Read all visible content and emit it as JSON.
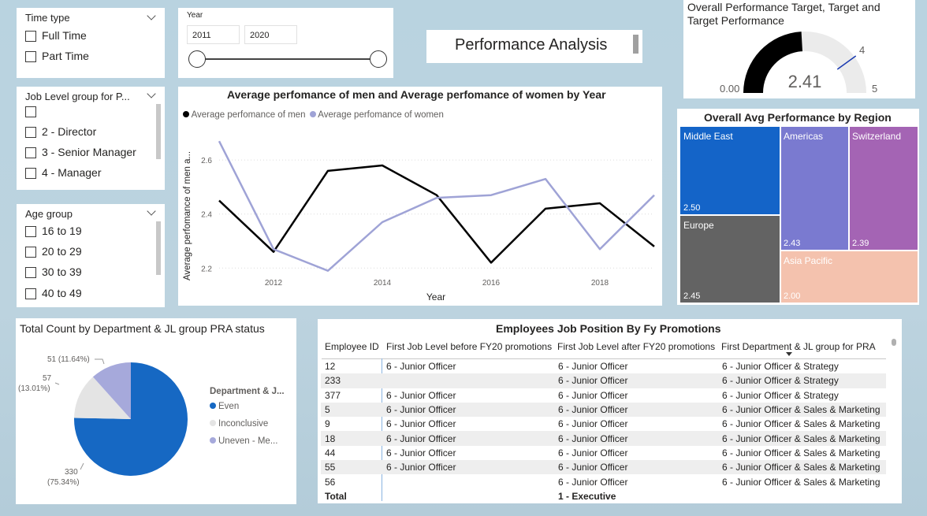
{
  "colors": {
    "men_line": "#000000",
    "women_line": "#9fa3d6",
    "middle_east": "#1464c8",
    "americas": "#7a7ad0",
    "switzerland": "#a464b4",
    "europe": "#636363",
    "asia_pacific": "#f4c2ae",
    "pie_even": "#1668c3",
    "pie_inconclusive": "#e4e4e4",
    "pie_uneven": "#a6a9db"
  },
  "time_type": {
    "title": "Time type",
    "items": [
      "Full Time",
      "Part Time"
    ]
  },
  "year_slicer": {
    "title": "Year",
    "start": "2011",
    "end": "2020",
    "range": [
      2011,
      2020
    ]
  },
  "page_title": "Performance Analysis",
  "job_level": {
    "title": "Job Level group for P...",
    "items": [
      "",
      "2 - Director",
      "3 - Senior Manager",
      "4 - Manager"
    ]
  },
  "age_group": {
    "title": "Age group",
    "items": [
      "16 to 19",
      "20 to 29",
      "30 to 39",
      "40 to 49"
    ]
  },
  "gauge": {
    "title_line1": "Overall Performance Target, Target and",
    "title_line2": "Target Performance",
    "value": 2.41,
    "value_label": "2.41",
    "min_label": "0.00",
    "max_label": "5",
    "target_label": "4",
    "min": 0,
    "max": 5,
    "target": 4
  },
  "line_chart": {
    "title": "Average perfomance of men and Average perfomance of women by Year",
    "legend_men": "Average perfomance of men",
    "legend_women": "Average perfomance of women",
    "xlabel": "Year",
    "ylabel": "Average perfomance of men a..."
  },
  "treemap": {
    "title": "Overall Avg Performance by Region",
    "tiles": [
      {
        "name": "Middle East",
        "value": "2.50"
      },
      {
        "name": "Europe",
        "value": "2.45"
      },
      {
        "name": "Americas",
        "value": "2.43"
      },
      {
        "name": "Switzerland",
        "value": "2.39"
      },
      {
        "name": "Asia Pacific",
        "value": "2.00"
      }
    ]
  },
  "pie": {
    "title": "Total Count by Department & JL group PRA status",
    "legend_title": "Department & J...",
    "legend": [
      "Even",
      "Inconclusive",
      "Uneven - Me..."
    ],
    "labels": {
      "even_count": "330",
      "even_pct": "(75.34%)",
      "inconclusive_count": "57",
      "inconclusive_pct": "(13.01%)",
      "uneven": "51 (11.64%)"
    }
  },
  "table": {
    "title": "Employees Job Position By Fy Promotions",
    "columns": [
      "Employee ID",
      "First Job Level before FY20 promotions",
      "First Job Level after FY20 promotions",
      "First Department & JL group for PRA"
    ],
    "rows": [
      [
        "12",
        "6 - Junior Officer",
        "6 - Junior Officer",
        "6 - Junior Officer & Strategy"
      ],
      [
        "233",
        "",
        "6 - Junior Officer",
        "6 - Junior Officer & Strategy"
      ],
      [
        "377",
        "6 - Junior Officer",
        "6 - Junior Officer",
        "6 - Junior Officer & Strategy"
      ],
      [
        "5",
        "6 - Junior Officer",
        "6 - Junior Officer",
        "6 - Junior Officer & Sales & Marketing"
      ],
      [
        "9",
        "6 - Junior Officer",
        "6 - Junior Officer",
        "6 - Junior Officer & Sales & Marketing"
      ],
      [
        "18",
        "6 - Junior Officer",
        "6 - Junior Officer",
        "6 - Junior Officer & Sales & Marketing"
      ],
      [
        "44",
        "6 - Junior Officer",
        "6 - Junior Officer",
        "6 - Junior Officer & Sales & Marketing"
      ],
      [
        "55",
        "6 - Junior Officer",
        "6 - Junior Officer",
        "6 - Junior Officer & Sales & Marketing"
      ],
      [
        "56",
        "",
        "6 - Junior Officer",
        "6 - Junior Officer & Sales & Marketing"
      ]
    ],
    "total_label": "Total",
    "total_after": "1 - Executive"
  },
  "chart_data": [
    {
      "type": "line",
      "title": "Average perfomance of men and Average perfomance of women by Year",
      "xlabel": "Year",
      "ylabel": "Average perfomance of men a...",
      "x": [
        2011,
        2012,
        2013,
        2014,
        2015,
        2016,
        2017,
        2018,
        2019
      ],
      "series": [
        {
          "name": "Average perfomance of men",
          "values": [
            2.45,
            2.26,
            2.56,
            2.58,
            2.47,
            2.22,
            2.42,
            2.44,
            2.28
          ]
        },
        {
          "name": "Average perfomance of women",
          "values": [
            2.67,
            2.27,
            2.19,
            2.37,
            2.46,
            2.47,
            2.53,
            2.27,
            2.47
          ]
        }
      ],
      "xticks": [
        2012,
        2014,
        2016,
        2018
      ],
      "yticks": [
        2.2,
        2.4,
        2.6
      ],
      "ylim": [
        2.16,
        2.72
      ],
      "grid": true,
      "legend": "top-left"
    },
    {
      "type": "pie",
      "title": "Total Count by Department & JL group PRA status",
      "categories": [
        "Even",
        "Inconclusive",
        "Uneven - Me..."
      ],
      "values": [
        330,
        57,
        51
      ],
      "percent": [
        75.34,
        13.01,
        11.64
      ],
      "legend": "right"
    },
    {
      "type": "treemap",
      "title": "Overall Avg Performance by Region",
      "categories": [
        "Middle East",
        "Europe",
        "Americas",
        "Switzerland",
        "Asia Pacific"
      ],
      "values": [
        2.5,
        2.45,
        2.43,
        2.39,
        2.0
      ]
    }
  ]
}
